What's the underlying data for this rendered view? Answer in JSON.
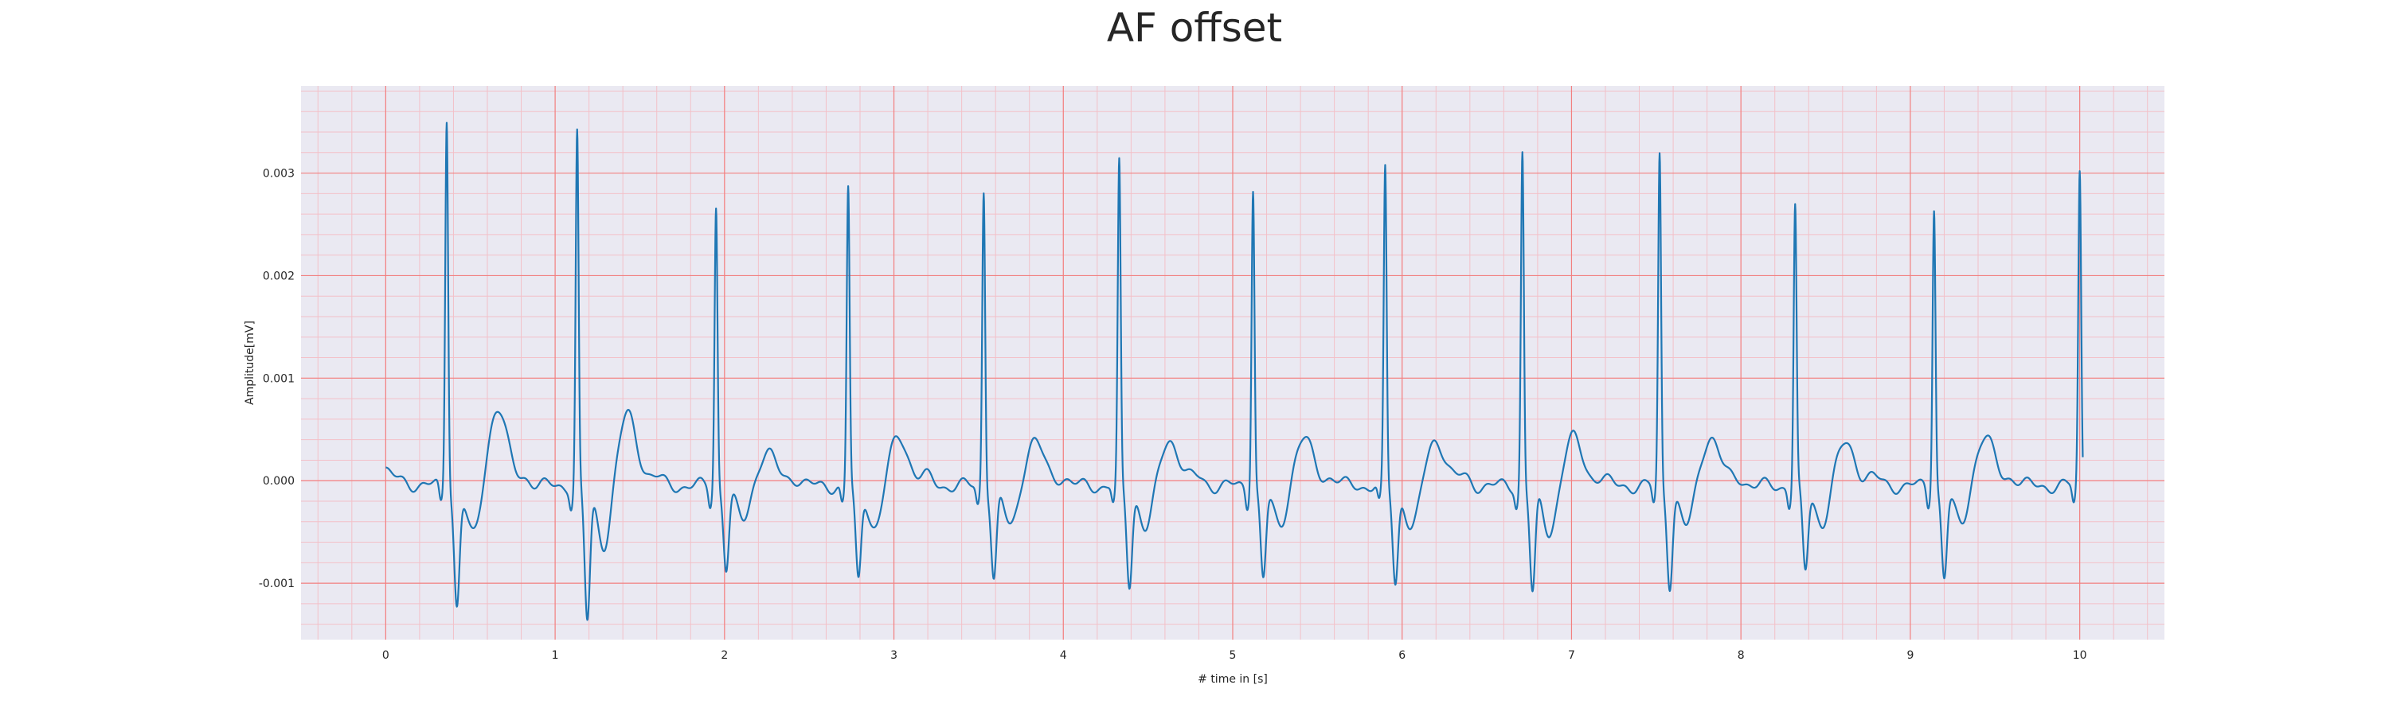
{
  "chart_data": {
    "type": "line",
    "title": "AF offset",
    "xlabel": "# time in [s]",
    "ylabel": "Amplitude[mV]",
    "xlim": [
      -0.5,
      10.5
    ],
    "ylim": [
      -0.00155,
      0.00385
    ],
    "x_ticks": [
      0,
      1,
      2,
      3,
      4,
      5,
      6,
      7,
      8,
      9,
      10
    ],
    "x_tick_labels": [
      "0",
      "1",
      "2",
      "3",
      "4",
      "5",
      "6",
      "7",
      "8",
      "9",
      "10"
    ],
    "y_ticks": [
      -0.001,
      0.0,
      0.001,
      0.002,
      0.003
    ],
    "y_tick_labels": [
      "-0.001",
      "0.000",
      "0.001",
      "0.002",
      "0.003"
    ],
    "grid": true,
    "grid_major_color": "#f28080",
    "grid_minor_color": "#f3c0c8",
    "background_color": "#eae9f2",
    "series": [
      {
        "color": "#1f77b4",
        "beats": [
          0.36,
          1.13,
          1.95,
          2.73,
          3.53,
          4.33,
          5.12,
          5.9,
          6.71,
          7.52,
          8.32,
          9.14,
          10.0
        ],
        "r_peaks": [
          0.0036,
          0.00344,
          0.00273,
          0.00291,
          0.0029,
          0.00312,
          0.00293,
          0.00308,
          0.00326,
          0.00322,
          0.00273,
          0.00274,
          0.00306
        ],
        "s_troughs": [
          -0.00115,
          -0.0013,
          -0.00078,
          -0.00092,
          -0.0009,
          -0.00094,
          -0.0009,
          -0.00094,
          -0.00104,
          -0.00093,
          -0.00083,
          -0.00088,
          -0.0004
        ],
        "t_waves": [
          0.00056,
          0.00049,
          0.00012,
          0.00028,
          0.00023,
          0.00025,
          0.00025,
          0.00025,
          0.00026,
          0.00028,
          0.00021,
          0.00027,
          0.00028
        ]
      }
    ]
  }
}
